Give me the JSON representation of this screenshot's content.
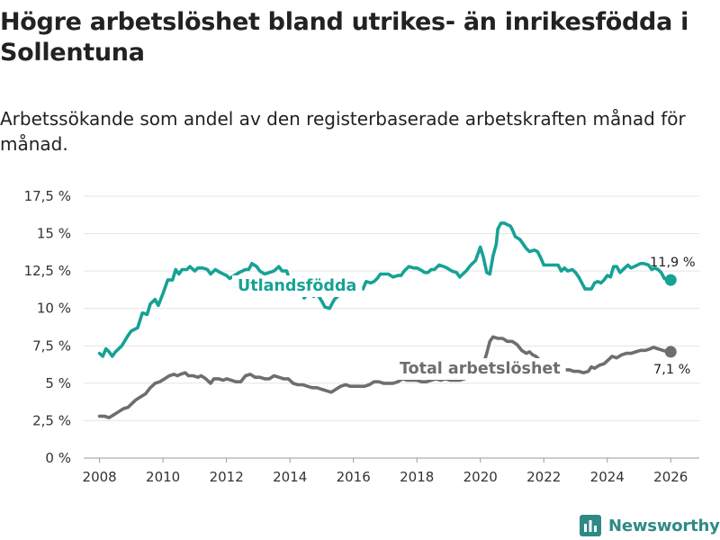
{
  "title": "Högre arbetslöshet bland utrikes- än inrikesfödda i Sollentuna",
  "subtitle": "Arbetssökande som andel av den registerbaserade arbetskraften månad för månad.",
  "brand": {
    "name": "Newsworthy",
    "icon": "bar-chart-logo-icon"
  },
  "colors": {
    "utlandsfodda": "#16a295",
    "total": "#6e6e6e",
    "grid": "#e4e4e4",
    "brand": "#2f8a86"
  },
  "chart_data": {
    "type": "line",
    "title": "Högre arbetslöshet bland utrikes- än inrikesfödda i Sollentuna",
    "xlabel": "",
    "ylabel": "",
    "xlim": [
      2007.5,
      2026.9
    ],
    "ylim": [
      0,
      17.5
    ],
    "x_ticks": [
      2008,
      2010,
      2012,
      2014,
      2016,
      2018,
      2020,
      2022,
      2024,
      2026
    ],
    "x_tick_labels": [
      "2008",
      "2010",
      "2012",
      "2014",
      "2016",
      "2018",
      "2020",
      "2022",
      "2024",
      "2026"
    ],
    "y_ticks": [
      0,
      2.5,
      5,
      7.5,
      10,
      12.5,
      15,
      17.5
    ],
    "y_tick_labels": [
      "0 %",
      "2,5 %",
      "5 %",
      "7,5 %",
      "10 %",
      "12,5 %",
      "15 %",
      "17,5 %"
    ],
    "series": [
      {
        "name": "Utlandsfödda",
        "label": "Utlandsfödda",
        "color": "#16a295",
        "end_label": "11,9 %",
        "points": [
          [
            2008.0,
            7.0
          ],
          [
            2008.1,
            6.8
          ],
          [
            2008.2,
            7.3
          ],
          [
            2008.3,
            7.1
          ],
          [
            2008.4,
            6.8
          ],
          [
            2008.5,
            7.1
          ],
          [
            2008.7,
            7.5
          ],
          [
            2008.9,
            8.2
          ],
          [
            2009.0,
            8.5
          ],
          [
            2009.2,
            8.7
          ],
          [
            2009.35,
            9.7
          ],
          [
            2009.5,
            9.6
          ],
          [
            2009.6,
            10.3
          ],
          [
            2009.75,
            10.6
          ],
          [
            2009.85,
            10.2
          ],
          [
            2010.0,
            11.0
          ],
          [
            2010.15,
            11.9
          ],
          [
            2010.3,
            11.9
          ],
          [
            2010.4,
            12.6
          ],
          [
            2010.5,
            12.3
          ],
          [
            2010.6,
            12.6
          ],
          [
            2010.75,
            12.6
          ],
          [
            2010.85,
            12.8
          ],
          [
            2011.0,
            12.5
          ],
          [
            2011.1,
            12.7
          ],
          [
            2011.25,
            12.7
          ],
          [
            2011.4,
            12.6
          ],
          [
            2011.5,
            12.3
          ],
          [
            2011.65,
            12.6
          ],
          [
            2011.8,
            12.4
          ],
          [
            2012.0,
            12.2
          ],
          [
            2012.1,
            12.0
          ],
          [
            2012.25,
            12.2
          ],
          [
            2012.4,
            12.4
          ],
          [
            2012.6,
            12.6
          ],
          [
            2012.7,
            12.6
          ],
          [
            2012.8,
            13.0
          ],
          [
            2012.95,
            12.8
          ],
          [
            2013.05,
            12.5
          ],
          [
            2013.2,
            12.3
          ],
          [
            2013.35,
            12.4
          ],
          [
            2013.5,
            12.5
          ],
          [
            2013.65,
            12.8
          ],
          [
            2013.75,
            12.5
          ],
          [
            2013.9,
            12.5
          ],
          [
            2014.0,
            11.8
          ],
          [
            2014.1,
            11.9
          ],
          [
            2014.25,
            11.1
          ],
          [
            2014.35,
            11.3
          ],
          [
            2014.45,
            10.7
          ],
          [
            2014.6,
            11.1
          ],
          [
            2014.75,
            10.8
          ],
          [
            2014.85,
            11.0
          ],
          [
            2015.0,
            10.5
          ],
          [
            2015.1,
            10.1
          ],
          [
            2015.25,
            10.0
          ],
          [
            2015.4,
            10.6
          ],
          [
            2015.5,
            10.8
          ],
          [
            2015.65,
            11.1
          ],
          [
            2015.75,
            10.9
          ],
          [
            2015.9,
            11.2
          ],
          [
            2016.05,
            11.3
          ],
          [
            2016.2,
            11.4
          ],
          [
            2016.3,
            11.3
          ],
          [
            2016.4,
            11.8
          ],
          [
            2016.55,
            11.7
          ],
          [
            2016.65,
            11.8
          ],
          [
            2016.75,
            12.0
          ],
          [
            2016.85,
            12.3
          ],
          [
            2017.0,
            12.3
          ],
          [
            2017.1,
            12.3
          ],
          [
            2017.25,
            12.1
          ],
          [
            2017.4,
            12.2
          ],
          [
            2017.5,
            12.2
          ],
          [
            2017.6,
            12.5
          ],
          [
            2017.75,
            12.8
          ],
          [
            2017.9,
            12.7
          ],
          [
            2018.0,
            12.7
          ],
          [
            2018.1,
            12.6
          ],
          [
            2018.25,
            12.4
          ],
          [
            2018.35,
            12.4
          ],
          [
            2018.45,
            12.6
          ],
          [
            2018.55,
            12.6
          ],
          [
            2018.7,
            12.9
          ],
          [
            2018.85,
            12.8
          ],
          [
            2018.95,
            12.7
          ],
          [
            2019.1,
            12.5
          ],
          [
            2019.25,
            12.4
          ],
          [
            2019.35,
            12.1
          ],
          [
            2019.45,
            12.3
          ],
          [
            2019.55,
            12.5
          ],
          [
            2019.7,
            12.9
          ],
          [
            2019.85,
            13.2
          ],
          [
            2020.0,
            14.1
          ],
          [
            2020.1,
            13.4
          ],
          [
            2020.2,
            12.4
          ],
          [
            2020.3,
            12.3
          ],
          [
            2020.4,
            13.5
          ],
          [
            2020.5,
            14.3
          ],
          [
            2020.55,
            15.3
          ],
          [
            2020.65,
            15.7
          ],
          [
            2020.75,
            15.7
          ],
          [
            2020.85,
            15.6
          ],
          [
            2020.95,
            15.5
          ],
          [
            2021.0,
            15.3
          ],
          [
            2021.1,
            14.8
          ],
          [
            2021.25,
            14.6
          ],
          [
            2021.35,
            14.3
          ],
          [
            2021.45,
            14.0
          ],
          [
            2021.55,
            13.8
          ],
          [
            2021.7,
            13.9
          ],
          [
            2021.8,
            13.8
          ],
          [
            2021.9,
            13.4
          ],
          [
            2022.0,
            12.9
          ],
          [
            2022.15,
            12.9
          ],
          [
            2022.3,
            12.9
          ],
          [
            2022.45,
            12.9
          ],
          [
            2022.55,
            12.5
          ],
          [
            2022.65,
            12.7
          ],
          [
            2022.75,
            12.5
          ],
          [
            2022.9,
            12.6
          ],
          [
            2023.0,
            12.4
          ],
          [
            2023.1,
            12.1
          ],
          [
            2023.2,
            11.7
          ],
          [
            2023.3,
            11.3
          ],
          [
            2023.5,
            11.3
          ],
          [
            2023.6,
            11.7
          ],
          [
            2023.7,
            11.8
          ],
          [
            2023.8,
            11.7
          ],
          [
            2023.9,
            11.9
          ],
          [
            2024.0,
            12.2
          ],
          [
            2024.1,
            12.1
          ],
          [
            2024.2,
            12.8
          ],
          [
            2024.3,
            12.8
          ],
          [
            2024.4,
            12.4
          ],
          [
            2024.55,
            12.7
          ],
          [
            2024.65,
            12.9
          ],
          [
            2024.75,
            12.7
          ],
          [
            2024.85,
            12.8
          ],
          [
            2024.95,
            12.9
          ],
          [
            2025.05,
            13.0
          ],
          [
            2025.15,
            13.0
          ],
          [
            2025.3,
            12.9
          ],
          [
            2025.4,
            12.6
          ],
          [
            2025.5,
            12.7
          ],
          [
            2025.6,
            12.6
          ],
          [
            2025.7,
            12.4
          ],
          [
            2025.8,
            12.0
          ],
          [
            2025.9,
            11.9
          ],
          [
            2026.0,
            11.9
          ]
        ]
      },
      {
        "name": "Total arbetslöshet",
        "label": "Total arbetslöshet",
        "color": "#6e6e6e",
        "end_label": "7,1 %",
        "points": [
          [
            2008.0,
            2.8
          ],
          [
            2008.15,
            2.8
          ],
          [
            2008.3,
            2.7
          ],
          [
            2008.45,
            2.9
          ],
          [
            2008.6,
            3.1
          ],
          [
            2008.75,
            3.3
          ],
          [
            2008.9,
            3.4
          ],
          [
            2009.0,
            3.6
          ],
          [
            2009.15,
            3.9
          ],
          [
            2009.3,
            4.1
          ],
          [
            2009.45,
            4.3
          ],
          [
            2009.6,
            4.7
          ],
          [
            2009.75,
            5.0
          ],
          [
            2009.9,
            5.1
          ],
          [
            2010.05,
            5.3
          ],
          [
            2010.2,
            5.5
          ],
          [
            2010.35,
            5.6
          ],
          [
            2010.45,
            5.5
          ],
          [
            2010.55,
            5.6
          ],
          [
            2010.7,
            5.7
          ],
          [
            2010.8,
            5.5
          ],
          [
            2010.95,
            5.5
          ],
          [
            2011.1,
            5.4
          ],
          [
            2011.2,
            5.5
          ],
          [
            2011.35,
            5.3
          ],
          [
            2011.5,
            5.0
          ],
          [
            2011.6,
            5.3
          ],
          [
            2011.75,
            5.3
          ],
          [
            2011.9,
            5.2
          ],
          [
            2012.0,
            5.3
          ],
          [
            2012.15,
            5.2
          ],
          [
            2012.3,
            5.1
          ],
          [
            2012.45,
            5.1
          ],
          [
            2012.6,
            5.5
          ],
          [
            2012.75,
            5.6
          ],
          [
            2012.9,
            5.4
          ],
          [
            2013.05,
            5.4
          ],
          [
            2013.2,
            5.3
          ],
          [
            2013.35,
            5.3
          ],
          [
            2013.5,
            5.5
          ],
          [
            2013.65,
            5.4
          ],
          [
            2013.8,
            5.3
          ],
          [
            2013.95,
            5.3
          ],
          [
            2014.1,
            5.0
          ],
          [
            2014.25,
            4.9
          ],
          [
            2014.4,
            4.9
          ],
          [
            2014.55,
            4.8
          ],
          [
            2014.7,
            4.7
          ],
          [
            2014.85,
            4.7
          ],
          [
            2015.0,
            4.6
          ],
          [
            2015.15,
            4.5
          ],
          [
            2015.3,
            4.4
          ],
          [
            2015.45,
            4.6
          ],
          [
            2015.6,
            4.8
          ],
          [
            2015.75,
            4.9
          ],
          [
            2015.9,
            4.8
          ],
          [
            2016.05,
            4.8
          ],
          [
            2016.2,
            4.8
          ],
          [
            2016.35,
            4.8
          ],
          [
            2016.5,
            4.9
          ],
          [
            2016.65,
            5.1
          ],
          [
            2016.8,
            5.1
          ],
          [
            2016.95,
            5.0
          ],
          [
            2017.1,
            5.0
          ],
          [
            2017.25,
            5.0
          ],
          [
            2017.4,
            5.1
          ],
          [
            2017.55,
            5.3
          ],
          [
            2017.7,
            5.2
          ],
          [
            2017.85,
            5.2
          ],
          [
            2018.0,
            5.2
          ],
          [
            2018.15,
            5.1
          ],
          [
            2018.3,
            5.1
          ],
          [
            2018.45,
            5.2
          ],
          [
            2018.6,
            5.3
          ],
          [
            2018.75,
            5.2
          ],
          [
            2018.9,
            5.3
          ],
          [
            2019.05,
            5.2
          ],
          [
            2019.2,
            5.2
          ],
          [
            2019.35,
            5.2
          ],
          [
            2019.5,
            5.3
          ],
          [
            2019.65,
            5.5
          ],
          [
            2019.8,
            5.6
          ],
          [
            2019.95,
            5.9
          ],
          [
            2020.1,
            6.3
          ],
          [
            2020.2,
            7.0
          ],
          [
            2020.3,
            7.8
          ],
          [
            2020.4,
            8.1
          ],
          [
            2020.55,
            8.0
          ],
          [
            2020.7,
            8.0
          ],
          [
            2020.85,
            7.8
          ],
          [
            2021.0,
            7.8
          ],
          [
            2021.15,
            7.6
          ],
          [
            2021.3,
            7.2
          ],
          [
            2021.45,
            7.0
          ],
          [
            2021.55,
            7.1
          ],
          [
            2021.65,
            6.9
          ],
          [
            2021.75,
            6.8
          ],
          [
            2021.9,
            6.5
          ],
          [
            2022.05,
            6.3
          ],
          [
            2022.2,
            6.1
          ],
          [
            2022.35,
            6.0
          ],
          [
            2022.5,
            5.9
          ],
          [
            2022.65,
            5.9
          ],
          [
            2022.8,
            5.9
          ],
          [
            2022.95,
            5.8
          ],
          [
            2023.1,
            5.8
          ],
          [
            2023.25,
            5.7
          ],
          [
            2023.4,
            5.8
          ],
          [
            2023.5,
            6.1
          ],
          [
            2023.6,
            6.0
          ],
          [
            2023.75,
            6.2
          ],
          [
            2023.9,
            6.3
          ],
          [
            2024.05,
            6.6
          ],
          [
            2024.15,
            6.8
          ],
          [
            2024.3,
            6.7
          ],
          [
            2024.45,
            6.9
          ],
          [
            2024.6,
            7.0
          ],
          [
            2024.75,
            7.0
          ],
          [
            2024.9,
            7.1
          ],
          [
            2025.05,
            7.2
          ],
          [
            2025.2,
            7.2
          ],
          [
            2025.35,
            7.3
          ],
          [
            2025.45,
            7.4
          ],
          [
            2025.6,
            7.3
          ],
          [
            2025.75,
            7.2
          ],
          [
            2025.9,
            7.1
          ],
          [
            2026.0,
            7.1
          ]
        ]
      }
    ]
  }
}
